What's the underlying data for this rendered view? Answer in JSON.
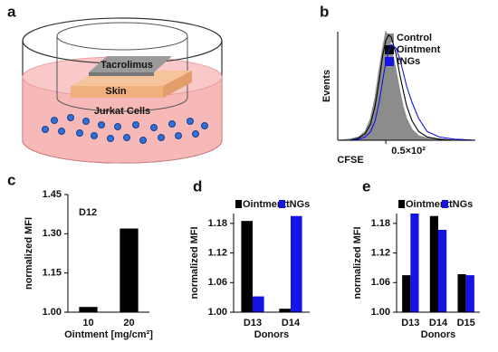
{
  "panel_labels": [
    "a",
    "b",
    "c",
    "d",
    "e"
  ],
  "diagram": {
    "labels": [
      "Tacrolimus",
      "Skin",
      "Jurkat Cells"
    ]
  },
  "chart_data": [
    {
      "type": "density",
      "ylabel": "Events",
      "xlabel": "CFSE",
      "log_x": true,
      "x": [
        10,
        15,
        20,
        25,
        30,
        35,
        40,
        45,
        50,
        55,
        60,
        70,
        80,
        90,
        100,
        120,
        150,
        200,
        300,
        500,
        1000
      ],
      "xlim": [
        10,
        1000
      ],
      "xticks": [
        {
          "value": 50,
          "label": "0.5×10²"
        }
      ],
      "ylim": [
        0,
        100
      ],
      "series": [
        {
          "name": "Control",
          "color": "#8c8c8c",
          "filled": true,
          "values": [
            0,
            1,
            3,
            8,
            20,
            40,
            65,
            85,
            100,
            95,
            85,
            65,
            45,
            30,
            20,
            10,
            4,
            2,
            1,
            0,
            0
          ]
        },
        {
          "name": "Ointment",
          "color": "#000000",
          "filled": false,
          "values": [
            0,
            0,
            2,
            6,
            15,
            32,
            55,
            78,
            92,
            97,
            95,
            80,
            60,
            45,
            32,
            18,
            8,
            3,
            1,
            0,
            0
          ]
        },
        {
          "name": "tNGs",
          "color": "#1414e6",
          "filled": false,
          "values": [
            0,
            0,
            1,
            3,
            8,
            18,
            35,
            55,
            72,
            82,
            88,
            85,
            75,
            62,
            50,
            35,
            20,
            8,
            3,
            1,
            0
          ]
        }
      ]
    },
    {
      "type": "bar",
      "annotation": "D12",
      "ylabel": "normalized MFI",
      "xlabel": "Ointment [mg/cm²]",
      "categories": [
        "10",
        "20"
      ],
      "values": [
        1.02,
        1.32
      ],
      "color": "#000000",
      "ylim": [
        1,
        1.45
      ],
      "yticks": [
        {
          "value": 1,
          "label": "1.00"
        },
        1.15,
        {
          "value": 1.3,
          "label": "1.30"
        },
        1.45
      ]
    },
    {
      "type": "bar",
      "ylabel": "normalized MFI",
      "xlabel": "Donors",
      "categories": [
        "D13",
        "D14"
      ],
      "series": [
        {
          "name": "Ointment",
          "color": "#000000",
          "values": [
            1.185,
            1.007
          ]
        },
        {
          "name": "tNGs",
          "color": "#1414e6",
          "values": [
            1.032,
            1.195
          ]
        }
      ],
      "ylim": [
        1,
        1.2
      ],
      "yticks": [
        {
          "value": 1,
          "label": "1.00"
        },
        1.06,
        1.12,
        1.18
      ]
    },
    {
      "type": "bar",
      "ylabel": "normalized MFI",
      "xlabel": "Donors",
      "categories": [
        "D13",
        "D14",
        "D15"
      ],
      "series": [
        {
          "name": "Ointment",
          "color": "#000000",
          "values": [
            1.075,
            1.195,
            1.077
          ]
        },
        {
          "name": "tNGs",
          "color": "#1414e6",
          "values": [
            1.2,
            1.167,
            1.075
          ]
        }
      ],
      "ylim": [
        1,
        1.2
      ],
      "yticks": [
        {
          "value": 1,
          "label": "1.00"
        },
        1.06,
        1.12,
        1.18
      ]
    }
  ]
}
